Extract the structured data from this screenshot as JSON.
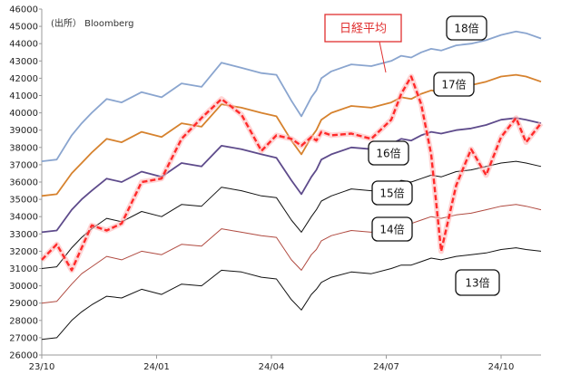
{
  "source_note": "(出所） Bloomberg",
  "chart_data": {
    "type": "line",
    "ylim": [
      26000,
      46000
    ],
    "yticks": [
      26000,
      27000,
      28000,
      29000,
      30000,
      31000,
      32000,
      33000,
      34000,
      35000,
      36000,
      37000,
      38000,
      39000,
      40000,
      41000,
      42000,
      43000,
      44000,
      45000,
      46000
    ],
    "x_tick_labels": [
      "23/10",
      "24/01",
      "24/04",
      "24/07",
      "24/10"
    ],
    "x": [
      0,
      0.03,
      0.06,
      0.08,
      0.1,
      0.13,
      0.16,
      0.2,
      0.24,
      0.28,
      0.32,
      0.36,
      0.4,
      0.44,
      0.47,
      0.5,
      0.52,
      0.54,
      0.55,
      0.56,
      0.58,
      0.62,
      0.66,
      0.7,
      0.72,
      0.74,
      0.76,
      0.78,
      0.8,
      0.83,
      0.86,
      0.89,
      0.92,
      0.95,
      0.97,
      1.0
    ],
    "series": [
      {
        "name": "18倍",
        "color": "#8aa5cf",
        "width": 1.8,
        "dashed": false,
        "values": [
          37200,
          37300,
          38700,
          39400,
          40000,
          40800,
          40600,
          41200,
          40900,
          41700,
          41500,
          42900,
          42600,
          42300,
          42200,
          40700,
          39800,
          40900,
          41300,
          42000,
          42400,
          42800,
          42700,
          43000,
          43300,
          43200,
          43500,
          43700,
          43600,
          43900,
          44000,
          44200,
          44500,
          44700,
          44600,
          44300
        ]
      },
      {
        "name": "17倍",
        "color": "#d6822e",
        "width": 1.8,
        "dashed": false,
        "values": [
          35200,
          35300,
          36500,
          37100,
          37700,
          38500,
          38300,
          38900,
          38600,
          39400,
          39200,
          40500,
          40300,
          40000,
          39800,
          38400,
          37600,
          38600,
          39000,
          39600,
          40000,
          40400,
          40300,
          40600,
          40900,
          40800,
          41100,
          41300,
          41200,
          41500,
          41600,
          41800,
          42100,
          42200,
          42100,
          41800
        ]
      },
      {
        "name": "16倍",
        "color": "#5e4b8b",
        "width": 1.8,
        "dashed": false,
        "values": [
          33100,
          33200,
          34400,
          35000,
          35500,
          36200,
          36000,
          36600,
          36300,
          37100,
          36900,
          38100,
          37900,
          37600,
          37400,
          36100,
          35300,
          36300,
          36700,
          37300,
          37600,
          38000,
          37900,
          38200,
          38500,
          38400,
          38700,
          38900,
          38800,
          39000,
          39100,
          39300,
          39600,
          39700,
          39600,
          39400
        ]
      },
      {
        "name": "15倍",
        "color": "#111111",
        "width": 1.0,
        "dashed": false,
        "values": [
          31000,
          31100,
          32200,
          32800,
          33300,
          33900,
          33700,
          34300,
          34000,
          34700,
          34600,
          35700,
          35500,
          35200,
          35100,
          33800,
          33100,
          34000,
          34400,
          34900,
          35200,
          35600,
          35500,
          35800,
          36100,
          36000,
          36200,
          36400,
          36300,
          36600,
          36700,
          36900,
          37100,
          37200,
          37100,
          36900
        ]
      },
      {
        "name": "14倍",
        "color": "#b04a40",
        "width": 1.0,
        "dashed": false,
        "values": [
          29000,
          29100,
          30100,
          30700,
          31100,
          31700,
          31500,
          32000,
          31800,
          32400,
          32300,
          33300,
          33100,
          32900,
          32800,
          31500,
          30900,
          31800,
          32100,
          32600,
          32900,
          33200,
          33100,
          33400,
          33700,
          33600,
          33800,
          34000,
          33900,
          34100,
          34200,
          34400,
          34600,
          34700,
          34600,
          34400
        ]
      },
      {
        "name": "13倍",
        "color": "#111111",
        "width": 1.0,
        "dashed": false,
        "values": [
          26900,
          27000,
          28000,
          28500,
          28900,
          29400,
          29300,
          29800,
          29500,
          30100,
          30000,
          30900,
          30800,
          30500,
          30400,
          29200,
          28600,
          29500,
          29800,
          30200,
          30500,
          30800,
          30700,
          31000,
          31200,
          31200,
          31400,
          31600,
          31500,
          31700,
          31800,
          31900,
          32100,
          32200,
          32100,
          32000
        ]
      },
      {
        "name": "日経平均",
        "color": "#ff2a2a",
        "width": 2.4,
        "dashed": true,
        "values": [
          31500,
          32400,
          30900,
          32200,
          33500,
          33200,
          33600,
          36000,
          36200,
          38500,
          39700,
          40800,
          39900,
          37800,
          38700,
          38500,
          38100,
          38600,
          38400,
          38900,
          38700,
          38800,
          38500,
          39600,
          41100,
          42100,
          40500,
          37600,
          32000,
          35800,
          37900,
          36400,
          38600,
          39700,
          38300,
          39400
        ]
      }
    ],
    "labels": [
      {
        "text": "18倍",
        "series": 0
      },
      {
        "text": "17倍",
        "series": 1
      },
      {
        "text": "16倍",
        "series": 2
      },
      {
        "text": "15倍",
        "series": 3
      },
      {
        "text": "14倍",
        "series": 4
      },
      {
        "text": "13倍",
        "series": 5
      },
      {
        "text": "日経平均",
        "series": 6
      }
    ]
  }
}
